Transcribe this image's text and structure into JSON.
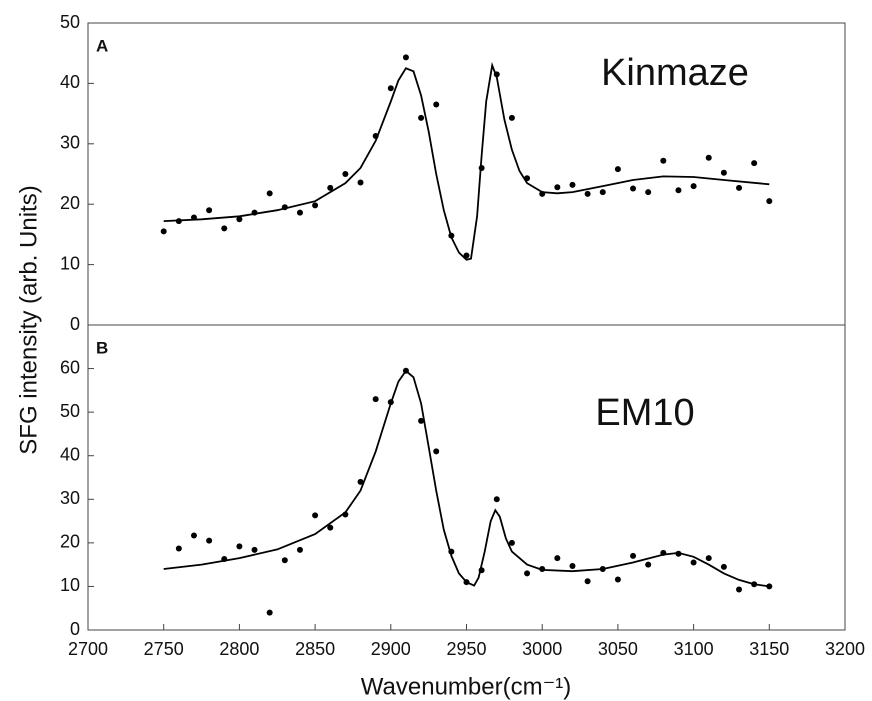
{
  "chart_data": [
    {
      "type": "scatter",
      "panel_label": "A",
      "annotation": "Kinmaze",
      "y_label": "SFG intensity (arb. Units)",
      "color": "#000000",
      "xlim": [
        2700,
        3200
      ],
      "ylim": [
        0,
        50
      ],
      "yticks": [
        0,
        10,
        20,
        30,
        40,
        50
      ],
      "x": [
        2750,
        2760,
        2770,
        2780,
        2790,
        2800,
        2810,
        2820,
        2830,
        2840,
        2850,
        2860,
        2870,
        2880,
        2890,
        2900,
        2910,
        2920,
        2930,
        2940,
        2950,
        2960,
        2970,
        2980,
        2990,
        3000,
        3010,
        3020,
        3030,
        3040,
        3050,
        3060,
        3070,
        3080,
        3090,
        3100,
        3110,
        3120,
        3130,
        3140,
        3150
      ],
      "values": [
        15.5,
        17.2,
        17.8,
        19,
        16,
        17.5,
        18.6,
        21.8,
        19.5,
        18.6,
        19.8,
        22.7,
        25,
        23.6,
        31.3,
        39.2,
        44.3,
        34.3,
        36.5,
        14.8,
        11.5,
        26,
        41.5,
        34.3,
        24.3,
        21.7,
        22.8,
        23.2,
        21.7,
        22,
        25.8,
        22.6,
        22,
        27.2,
        22.3,
        23,
        27.7,
        25.2,
        22.7,
        26.8,
        20.5
      ],
      "fit_x": [
        2750,
        2775,
        2800,
        2825,
        2850,
        2870,
        2880,
        2890,
        2900,
        2905,
        2910,
        2915,
        2920,
        2925,
        2930,
        2935,
        2940,
        2945,
        2950,
        2953,
        2957,
        2960,
        2963,
        2967,
        2970,
        2975,
        2980,
        2985,
        2990,
        3000,
        3010,
        3020,
        3040,
        3060,
        3080,
        3100,
        3120,
        3150
      ],
      "fit_values": [
        17.2,
        17.5,
        18,
        19,
        20.5,
        23.5,
        26,
        30.5,
        37,
        40.5,
        42.5,
        42,
        38,
        32,
        25,
        19,
        14.5,
        12,
        10.8,
        11,
        18,
        28,
        37,
        43,
        41,
        34,
        29,
        25.5,
        23.5,
        22,
        21.8,
        22,
        23,
        24,
        24.6,
        24.5,
        24,
        23.3
      ]
    },
    {
      "type": "scatter",
      "panel_label": "B",
      "annotation": "EM10",
      "x_label": "Wavenumber(cm⁻¹)",
      "color": "#000000",
      "xlim": [
        2700,
        3200
      ],
      "xticks": [
        2700,
        2750,
        2800,
        2850,
        2900,
        2950,
        3000,
        3050,
        3100,
        3150,
        3200
      ],
      "ylim": [
        0,
        70
      ],
      "yticks": [
        0,
        10,
        20,
        30,
        40,
        50,
        60
      ],
      "x": [
        2760,
        2770,
        2780,
        2790,
        2800,
        2810,
        2820,
        2830,
        2840,
        2850,
        2860,
        2870,
        2880,
        2890,
        2900,
        2910,
        2920,
        2930,
        2940,
        2950,
        2960,
        2970,
        2980,
        2990,
        3000,
        3010,
        3020,
        3030,
        3040,
        3050,
        3060,
        3070,
        3080,
        3090,
        3100,
        3110,
        3120,
        3130,
        3140,
        3150
      ],
      "values": [
        18.7,
        21.7,
        20.5,
        16.3,
        19.2,
        18.4,
        4,
        16,
        18.4,
        26.3,
        23.5,
        26.5,
        34,
        53,
        52.3,
        59.5,
        48,
        41,
        18,
        11,
        13.7,
        30,
        20,
        13,
        14,
        16.5,
        14.7,
        11.2,
        14,
        11.6,
        17,
        15,
        17.7,
        17.5,
        15.5,
        16.5,
        14.5,
        9.3,
        10.5,
        10
      ],
      "fit_x": [
        2750,
        2775,
        2800,
        2825,
        2850,
        2870,
        2880,
        2890,
        2900,
        2905,
        2910,
        2915,
        2920,
        2925,
        2930,
        2935,
        2940,
        2945,
        2950,
        2955,
        2958,
        2962,
        2966,
        2969,
        2972,
        2976,
        2980,
        2990,
        3000,
        3020,
        3040,
        3060,
        3080,
        3090,
        3100,
        3110,
        3120,
        3130,
        3140,
        3150
      ],
      "fit_values": [
        14,
        15,
        16.5,
        18.5,
        22,
        27,
        32,
        41,
        52,
        57,
        59.5,
        58,
        52,
        42,
        32,
        23,
        17,
        13,
        11,
        10.2,
        12,
        18,
        25,
        27.5,
        26,
        21,
        18,
        15,
        13.8,
        13.5,
        14,
        15.5,
        17.3,
        17.7,
        16.8,
        15,
        13,
        11.5,
        10.5,
        10
      ]
    }
  ]
}
